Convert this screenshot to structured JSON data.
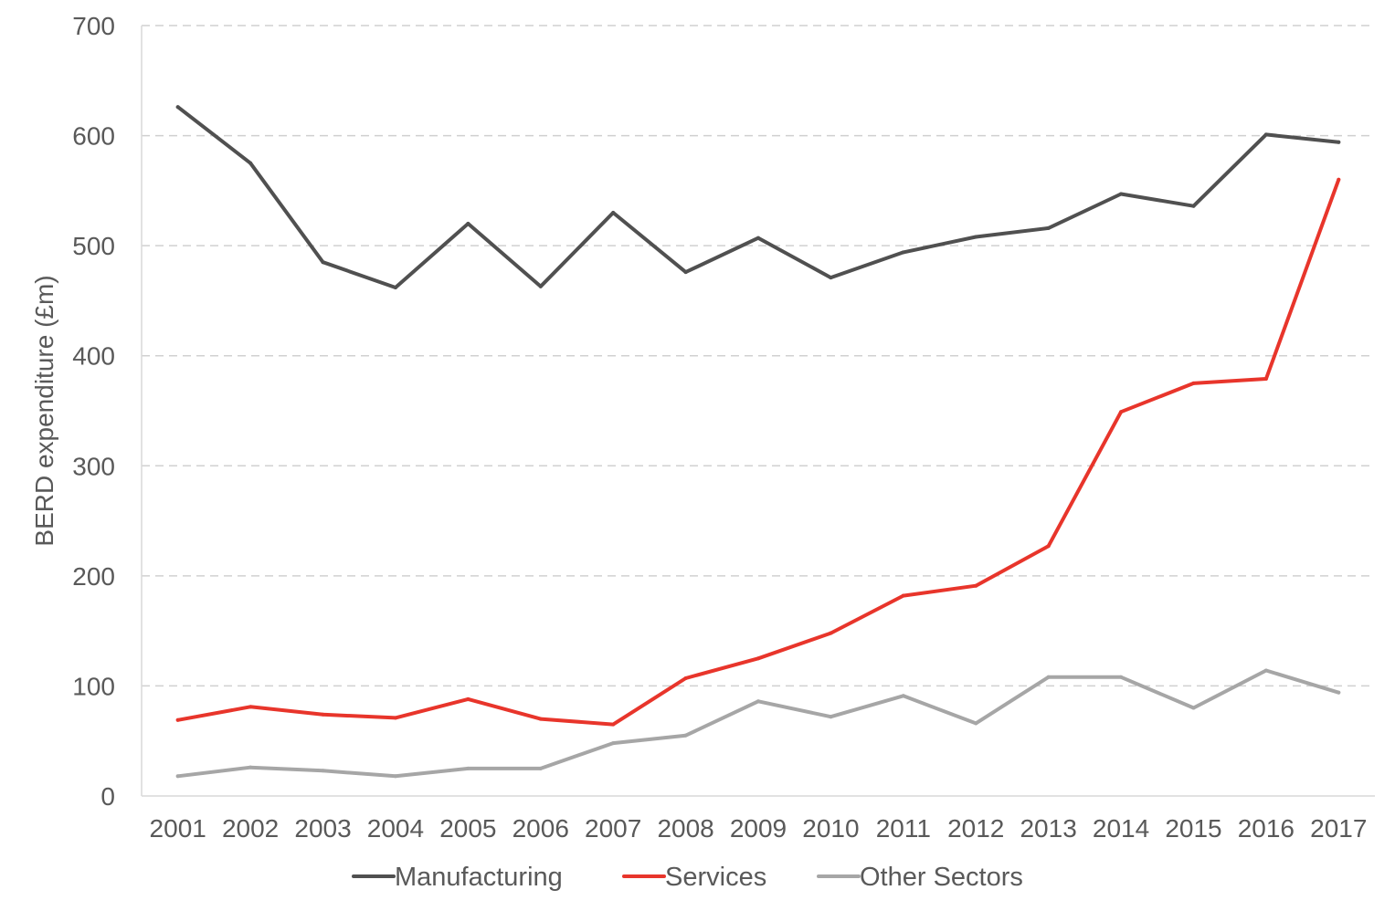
{
  "chart_data": {
    "type": "line",
    "title": "",
    "xlabel": "",
    "ylabel": "BERD expenditure (£m)",
    "ylim": [
      0,
      700
    ],
    "yticks": [
      0,
      100,
      200,
      300,
      400,
      500,
      600,
      700
    ],
    "grid": "horizontal dashed",
    "legend_position": "bottom",
    "x": [
      "2001",
      "2002",
      "2003",
      "2004",
      "2005",
      "2006",
      "2007",
      "2008",
      "2009",
      "2010",
      "2011",
      "2012",
      "2013",
      "2014",
      "2015",
      "2016",
      "2017"
    ],
    "series": [
      {
        "name": "Manufacturing",
        "color": "#505050",
        "values": [
          626,
          575,
          485,
          462,
          520,
          463,
          530,
          476,
          507,
          471,
          494,
          508,
          516,
          547,
          536,
          601,
          594
        ]
      },
      {
        "name": "Services",
        "color": "#e8352b",
        "values": [
          69,
          81,
          74,
          71,
          88,
          70,
          65,
          107,
          125,
          148,
          182,
          191,
          227,
          349,
          375,
          379,
          560
        ]
      },
      {
        "name": "Other Sectors",
        "color": "#a6a6a6",
        "values": [
          18,
          26,
          23,
          18,
          25,
          25,
          48,
          55,
          86,
          72,
          91,
          66,
          108,
          108,
          80,
          114,
          94
        ]
      }
    ]
  }
}
